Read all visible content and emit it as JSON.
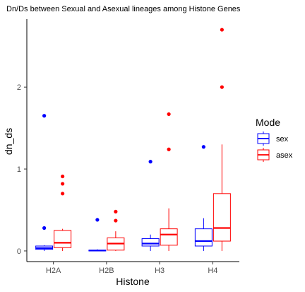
{
  "chart_data": {
    "type": "boxplot",
    "title": "Dn/Ds between Sexual and Asexual lineages among Histone Genes",
    "xlabel": "Histone",
    "ylabel": "dn_ds",
    "categories": [
      "H2A",
      "H2B",
      "H3",
      "H4"
    ],
    "yticks": [
      0,
      1,
      2
    ],
    "ylim": [
      -0.13,
      2.83
    ],
    "grid": false,
    "legend": {
      "title": "Mode",
      "position": "right",
      "entries": [
        "sex",
        "asex"
      ]
    },
    "series": [
      {
        "name": "sex",
        "color": "#0000ff",
        "boxes": [
          {
            "category": "H2A",
            "min": 0.0,
            "q1": 0.02,
            "median": 0.035,
            "q3": 0.06,
            "max": 0.07,
            "outliers": [
              1.65,
              0.28
            ]
          },
          {
            "category": "H2B",
            "min": 0.0,
            "q1": 0.0,
            "median": 0.005,
            "q3": 0.01,
            "max": 0.02,
            "outliers": [
              0.38
            ]
          },
          {
            "category": "H3",
            "min": 0.0,
            "q1": 0.06,
            "median": 0.09,
            "q3": 0.15,
            "max": 0.2,
            "outliers": [
              1.09
            ]
          },
          {
            "category": "H4",
            "min": 0.0,
            "q1": 0.06,
            "median": 0.12,
            "q3": 0.27,
            "max": 0.4,
            "outliers": [
              1.27
            ]
          }
        ]
      },
      {
        "name": "asex",
        "color": "#ff0000",
        "boxes": [
          {
            "category": "H2A",
            "min": 0.0,
            "q1": 0.04,
            "median": 0.1,
            "q3": 0.25,
            "max": 0.27,
            "outliers": [
              0.91,
              0.82,
              0.7
            ]
          },
          {
            "category": "H2B",
            "min": 0.0,
            "q1": 0.01,
            "median": 0.09,
            "q3": 0.16,
            "max": 0.24,
            "outliers": [
              0.48,
              0.37
            ]
          },
          {
            "category": "H3",
            "min": 0.0,
            "q1": 0.07,
            "median": 0.2,
            "q3": 0.27,
            "max": 0.52,
            "outliers": [
              1.67,
              1.24
            ]
          },
          {
            "category": "H4",
            "min": 0.0,
            "q1": 0.12,
            "median": 0.28,
            "q3": 0.7,
            "max": 1.3,
            "outliers": [
              2.7,
              2.0
            ]
          }
        ]
      }
    ]
  }
}
